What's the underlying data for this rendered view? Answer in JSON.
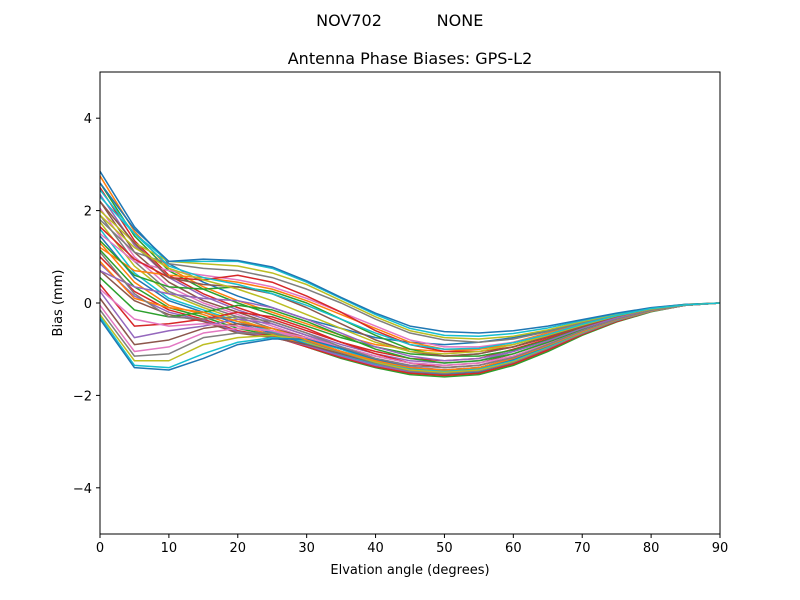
{
  "suptitle": {
    "left": "NOV702",
    "right": "NONE"
  },
  "chart_data": {
    "type": "line",
    "title": "Antenna Phase Biases: GPS-L2",
    "xlabel": "Elvation angle (degrees)",
    "ylabel": "Bias (mm)",
    "xlim": [
      0,
      90
    ],
    "ylim": [
      -5,
      5
    ],
    "xticks": [
      "0",
      "10",
      "20",
      "30",
      "40",
      "50",
      "60",
      "70",
      "80",
      "90"
    ],
    "yticks": [
      "−4",
      "−2",
      "0",
      "2",
      "4"
    ],
    "ytick_values": [
      -4,
      -2,
      0,
      2,
      4
    ],
    "xtick_values": [
      0,
      10,
      20,
      30,
      40,
      50,
      60,
      70,
      80,
      90
    ],
    "grid": false,
    "legend": "none",
    "x": [
      0,
      5,
      10,
      15,
      20,
      25,
      30,
      35,
      40,
      45,
      50,
      55,
      60,
      65,
      70,
      75,
      80,
      85,
      90
    ],
    "palette": [
      "#1f77b4",
      "#ff7f0e",
      "#2ca02c",
      "#d62728",
      "#9467bd",
      "#8c564b",
      "#e377c2",
      "#7f7f7f",
      "#bcbd22",
      "#17becf"
    ],
    "series": [
      {
        "values": [
          2.85,
          1.65,
          0.85,
          0.45,
          0.15,
          -0.1,
          -0.35,
          -0.55,
          -0.75,
          -0.85,
          -0.9,
          -0.85,
          -0.75,
          -0.6,
          -0.4,
          -0.25,
          -0.12,
          -0.04,
          0.0
        ]
      },
      {
        "values": [
          2.75,
          1.55,
          0.75,
          0.35,
          0.05,
          -0.2,
          -0.45,
          -0.7,
          -0.9,
          -1.0,
          -1.05,
          -1.0,
          -0.85,
          -0.65,
          -0.45,
          -0.28,
          -0.13,
          -0.04,
          0.0
        ]
      },
      {
        "values": [
          2.6,
          1.45,
          0.7,
          0.3,
          0.0,
          -0.25,
          -0.5,
          -0.75,
          -0.95,
          -1.1,
          -1.15,
          -1.1,
          -0.95,
          -0.72,
          -0.5,
          -0.3,
          -0.14,
          -0.04,
          0.0
        ]
      },
      {
        "values": [
          2.5,
          1.35,
          0.6,
          0.2,
          -0.1,
          -0.35,
          -0.6,
          -0.85,
          -1.05,
          -1.2,
          -1.25,
          -1.2,
          -1.0,
          -0.78,
          -0.53,
          -0.32,
          -0.15,
          -0.05,
          0.0
        ]
      },
      {
        "values": [
          2.35,
          1.25,
          0.55,
          0.15,
          -0.15,
          -0.4,
          -0.65,
          -0.9,
          -1.1,
          -1.25,
          -1.3,
          -1.25,
          -1.05,
          -0.8,
          -0.55,
          -0.33,
          -0.15,
          -0.05,
          0.0
        ]
      },
      {
        "values": [
          2.2,
          1.1,
          0.45,
          0.05,
          -0.2,
          -0.45,
          -0.7,
          -0.95,
          -1.15,
          -1.3,
          -1.35,
          -1.3,
          -1.1,
          -0.85,
          -0.57,
          -0.34,
          -0.16,
          -0.05,
          0.0
        ]
      },
      {
        "values": [
          2.05,
          1.0,
          0.35,
          0.0,
          -0.25,
          -0.5,
          -0.75,
          -1.0,
          -1.2,
          -1.35,
          -1.4,
          -1.35,
          -1.15,
          -0.88,
          -0.6,
          -0.35,
          -0.16,
          -0.05,
          0.0
        ]
      },
      {
        "values": [
          1.9,
          0.9,
          0.25,
          -0.05,
          -0.3,
          -0.55,
          -0.8,
          -1.05,
          -1.25,
          -1.4,
          -1.45,
          -1.4,
          -1.2,
          -0.9,
          -0.62,
          -0.36,
          -0.17,
          -0.05,
          0.0
        ]
      },
      {
        "values": [
          1.75,
          0.8,
          0.2,
          -0.1,
          -0.35,
          -0.6,
          -0.85,
          -1.1,
          -1.3,
          -1.45,
          -1.5,
          -1.45,
          -1.25,
          -0.95,
          -0.64,
          -0.38,
          -0.17,
          -0.05,
          0.0
        ]
      },
      {
        "values": [
          1.6,
          0.65,
          0.1,
          -0.15,
          -0.4,
          -0.62,
          -0.88,
          -1.12,
          -1.33,
          -1.48,
          -1.52,
          -1.47,
          -1.27,
          -0.97,
          -0.65,
          -0.38,
          -0.18,
          -0.05,
          0.0
        ]
      },
      {
        "values": [
          1.45,
          0.55,
          0.05,
          -0.2,
          -0.45,
          -0.65,
          -0.9,
          -1.15,
          -1.35,
          -1.5,
          -1.55,
          -1.5,
          -1.3,
          -1.0,
          -0.67,
          -0.39,
          -0.18,
          -0.05,
          0.0
        ]
      },
      {
        "values": [
          1.3,
          0.45,
          -0.05,
          -0.25,
          -0.5,
          -0.68,
          -0.92,
          -1.17,
          -1.37,
          -1.52,
          -1.57,
          -1.52,
          -1.32,
          -1.02,
          -0.68,
          -0.4,
          -0.18,
          -0.05,
          0.0
        ]
      },
      {
        "values": [
          1.15,
          0.35,
          -0.1,
          -0.3,
          -0.55,
          -0.7,
          -0.95,
          -1.2,
          -1.4,
          -1.55,
          -1.6,
          -1.55,
          -1.35,
          -1.05,
          -0.7,
          -0.41,
          -0.19,
          -0.05,
          0.0
        ]
      },
      {
        "values": [
          1.0,
          0.25,
          -0.15,
          -0.35,
          -0.6,
          -0.72,
          -0.95,
          -1.18,
          -1.38,
          -1.52,
          -1.57,
          -1.52,
          -1.32,
          -1.02,
          -0.68,
          -0.4,
          -0.18,
          -0.05,
          0.0
        ]
      },
      {
        "values": [
          0.85,
          0.15,
          -0.2,
          -0.38,
          -0.62,
          -0.74,
          -0.92,
          -1.15,
          -1.35,
          -1.48,
          -1.52,
          -1.47,
          -1.28,
          -0.98,
          -0.66,
          -0.38,
          -0.18,
          -0.05,
          0.0
        ]
      },
      {
        "values": [
          0.7,
          0.05,
          -0.25,
          -0.4,
          -0.65,
          -0.75,
          -0.9,
          -1.1,
          -1.3,
          -1.42,
          -1.47,
          -1.42,
          -1.23,
          -0.95,
          -0.63,
          -0.37,
          -0.17,
          -0.05,
          0.0
        ]
      },
      {
        "values": [
          1.5,
          0.9,
          0.7,
          0.6,
          0.5,
          0.35,
          0.1,
          -0.2,
          -0.5,
          -0.8,
          -0.95,
          -0.95,
          -0.85,
          -0.68,
          -0.46,
          -0.27,
          -0.13,
          -0.04,
          0.0
        ]
      },
      {
        "values": [
          1.8,
          1.1,
          0.85,
          0.75,
          0.7,
          0.55,
          0.3,
          0.0,
          -0.35,
          -0.65,
          -0.8,
          -0.85,
          -0.78,
          -0.62,
          -0.43,
          -0.25,
          -0.12,
          -0.04,
          0.0
        ]
      },
      {
        "values": [
          2.0,
          1.3,
          0.9,
          0.85,
          0.8,
          0.65,
          0.4,
          0.05,
          -0.3,
          -0.6,
          -0.75,
          -0.78,
          -0.72,
          -0.58,
          -0.4,
          -0.24,
          -0.11,
          -0.03,
          0.0
        ]
      },
      {
        "values": [
          2.3,
          1.5,
          0.9,
          0.9,
          0.9,
          0.75,
          0.45,
          0.1,
          -0.25,
          -0.55,
          -0.7,
          -0.72,
          -0.66,
          -0.54,
          -0.38,
          -0.23,
          -0.11,
          -0.03,
          0.0
        ]
      },
      {
        "values": [
          2.6,
          1.6,
          0.9,
          0.95,
          0.92,
          0.78,
          0.48,
          0.12,
          -0.22,
          -0.5,
          -0.62,
          -0.65,
          -0.6,
          -0.5,
          -0.36,
          -0.22,
          -0.1,
          -0.03,
          0.0
        ]
      },
      {
        "values": [
          1.2,
          0.7,
          0.6,
          0.55,
          0.45,
          0.3,
          0.05,
          -0.25,
          -0.55,
          -0.85,
          -1.0,
          -1.0,
          -0.9,
          -0.7,
          -0.48,
          -0.28,
          -0.13,
          -0.04,
          0.0
        ]
      },
      {
        "values": [
          0.55,
          -0.15,
          -0.3,
          -0.2,
          -0.05,
          -0.15,
          -0.4,
          -0.7,
          -1.0,
          -1.2,
          -1.3,
          -1.25,
          -1.1,
          -0.85,
          -0.57,
          -0.34,
          -0.16,
          -0.05,
          0.0
        ]
      },
      {
        "values": [
          0.4,
          -0.5,
          -0.45,
          -0.35,
          -0.2,
          -0.3,
          -0.55,
          -0.85,
          -1.1,
          -1.3,
          -1.4,
          -1.35,
          -1.18,
          -0.9,
          -0.6,
          -0.35,
          -0.16,
          -0.05,
          0.0
        ]
      },
      {
        "values": [
          0.25,
          -0.75,
          -0.6,
          -0.5,
          -0.35,
          -0.45,
          -0.7,
          -0.95,
          -1.2,
          -1.38,
          -1.45,
          -1.4,
          -1.22,
          -0.93,
          -0.62,
          -0.36,
          -0.17,
          -0.05,
          0.0
        ]
      },
      {
        "values": [
          0.1,
          -0.9,
          -0.8,
          -0.55,
          -0.45,
          -0.55,
          -0.75,
          -1.0,
          -1.25,
          -1.42,
          -1.48,
          -1.43,
          -1.25,
          -0.95,
          -0.63,
          -0.37,
          -0.17,
          -0.05,
          0.0
        ]
      },
      {
        "values": [
          -0.05,
          -1.05,
          -0.95,
          -0.65,
          -0.55,
          -0.6,
          -0.8,
          -1.05,
          -1.28,
          -1.45,
          -1.5,
          -1.45,
          -1.26,
          -0.96,
          -0.64,
          -0.37,
          -0.17,
          -0.05,
          0.0
        ]
      },
      {
        "values": [
          -0.15,
          -1.15,
          -1.1,
          -0.75,
          -0.65,
          -0.65,
          -0.82,
          -1.07,
          -1.3,
          -1.47,
          -1.52,
          -1.47,
          -1.28,
          -0.97,
          -0.65,
          -0.38,
          -0.18,
          -0.05,
          0.0
        ]
      },
      {
        "values": [
          -0.25,
          -1.25,
          -1.25,
          -0.9,
          -0.75,
          -0.7,
          -0.8,
          -1.05,
          -1.28,
          -1.45,
          -1.5,
          -1.45,
          -1.26,
          -0.96,
          -0.64,
          -0.37,
          -0.17,
          -0.05,
          0.0
        ]
      },
      {
        "values": [
          -0.3,
          -1.35,
          -1.4,
          -1.1,
          -0.85,
          -0.75,
          -0.8,
          -1.0,
          -1.25,
          -1.42,
          -1.47,
          -1.42,
          -1.24,
          -0.95,
          -0.63,
          -0.37,
          -0.17,
          -0.05,
          0.0
        ]
      },
      {
        "values": [
          -0.35,
          -1.4,
          -1.45,
          -1.2,
          -0.9,
          -0.78,
          -0.78,
          -0.98,
          -1.22,
          -1.4,
          -1.45,
          -1.4,
          -1.22,
          -0.93,
          -0.62,
          -0.36,
          -0.17,
          -0.05,
          0.0
        ]
      },
      {
        "values": [
          0.9,
          0.1,
          -0.1,
          -0.2,
          -0.4,
          -0.55,
          -0.8,
          -1.05,
          -1.25,
          -1.4,
          -1.45,
          -1.4,
          -1.2,
          -0.92,
          -0.62,
          -0.36,
          -0.17,
          -0.05,
          0.0
        ]
      },
      {
        "values": [
          1.35,
          0.6,
          0.35,
          0.3,
          0.35,
          0.25,
          0.0,
          -0.35,
          -0.7,
          -1.0,
          -1.15,
          -1.15,
          -1.02,
          -0.8,
          -0.54,
          -0.31,
          -0.14,
          -0.04,
          0.0
        ]
      },
      {
        "values": [
          1.65,
          0.95,
          0.55,
          0.5,
          0.6,
          0.45,
          0.15,
          -0.2,
          -0.6,
          -0.9,
          -1.05,
          -1.05,
          -0.95,
          -0.75,
          -0.51,
          -0.3,
          -0.14,
          -0.04,
          0.0
        ]
      },
      {
        "values": [
          0.7,
          0.35,
          0.2,
          0.1,
          0.05,
          -0.1,
          -0.35,
          -0.65,
          -0.95,
          -1.15,
          -1.25,
          -1.2,
          -1.05,
          -0.82,
          -0.55,
          -0.32,
          -0.15,
          -0.04,
          0.0
        ]
      },
      {
        "values": [
          2.2,
          1.3,
          0.55,
          0.4,
          0.35,
          0.2,
          -0.1,
          -0.45,
          -0.8,
          -1.05,
          -1.15,
          -1.1,
          -0.95,
          -0.73,
          -0.5,
          -0.29,
          -0.13,
          -0.04,
          0.0
        ]
      },
      {
        "values": [
          0.3,
          -0.35,
          -0.5,
          -0.45,
          -0.5,
          -0.6,
          -0.75,
          -0.95,
          -1.15,
          -1.3,
          -1.35,
          -1.3,
          -1.15,
          -0.9,
          -0.6,
          -0.35,
          -0.16,
          -0.05,
          0.0
        ]
      },
      {
        "values": [
          1.1,
          0.2,
          -0.3,
          -0.35,
          -0.3,
          -0.4,
          -0.65,
          -0.95,
          -1.2,
          -1.35,
          -1.4,
          -1.35,
          -1.18,
          -0.9,
          -0.6,
          -0.35,
          -0.16,
          -0.05,
          0.0
        ]
      },
      {
        "values": [
          1.9,
          1.2,
          0.75,
          0.5,
          0.3,
          0.05,
          -0.25,
          -0.55,
          -0.85,
          -1.05,
          -1.1,
          -1.05,
          -0.9,
          -0.7,
          -0.48,
          -0.28,
          -0.13,
          -0.04,
          0.0
        ]
      },
      {
        "values": [
          2.45,
          1.5,
          0.8,
          0.55,
          0.4,
          0.2,
          -0.05,
          -0.35,
          -0.65,
          -0.9,
          -1.0,
          -0.98,
          -0.86,
          -0.68,
          -0.46,
          -0.27,
          -0.12,
          -0.04,
          0.0
        ]
      }
    ]
  }
}
